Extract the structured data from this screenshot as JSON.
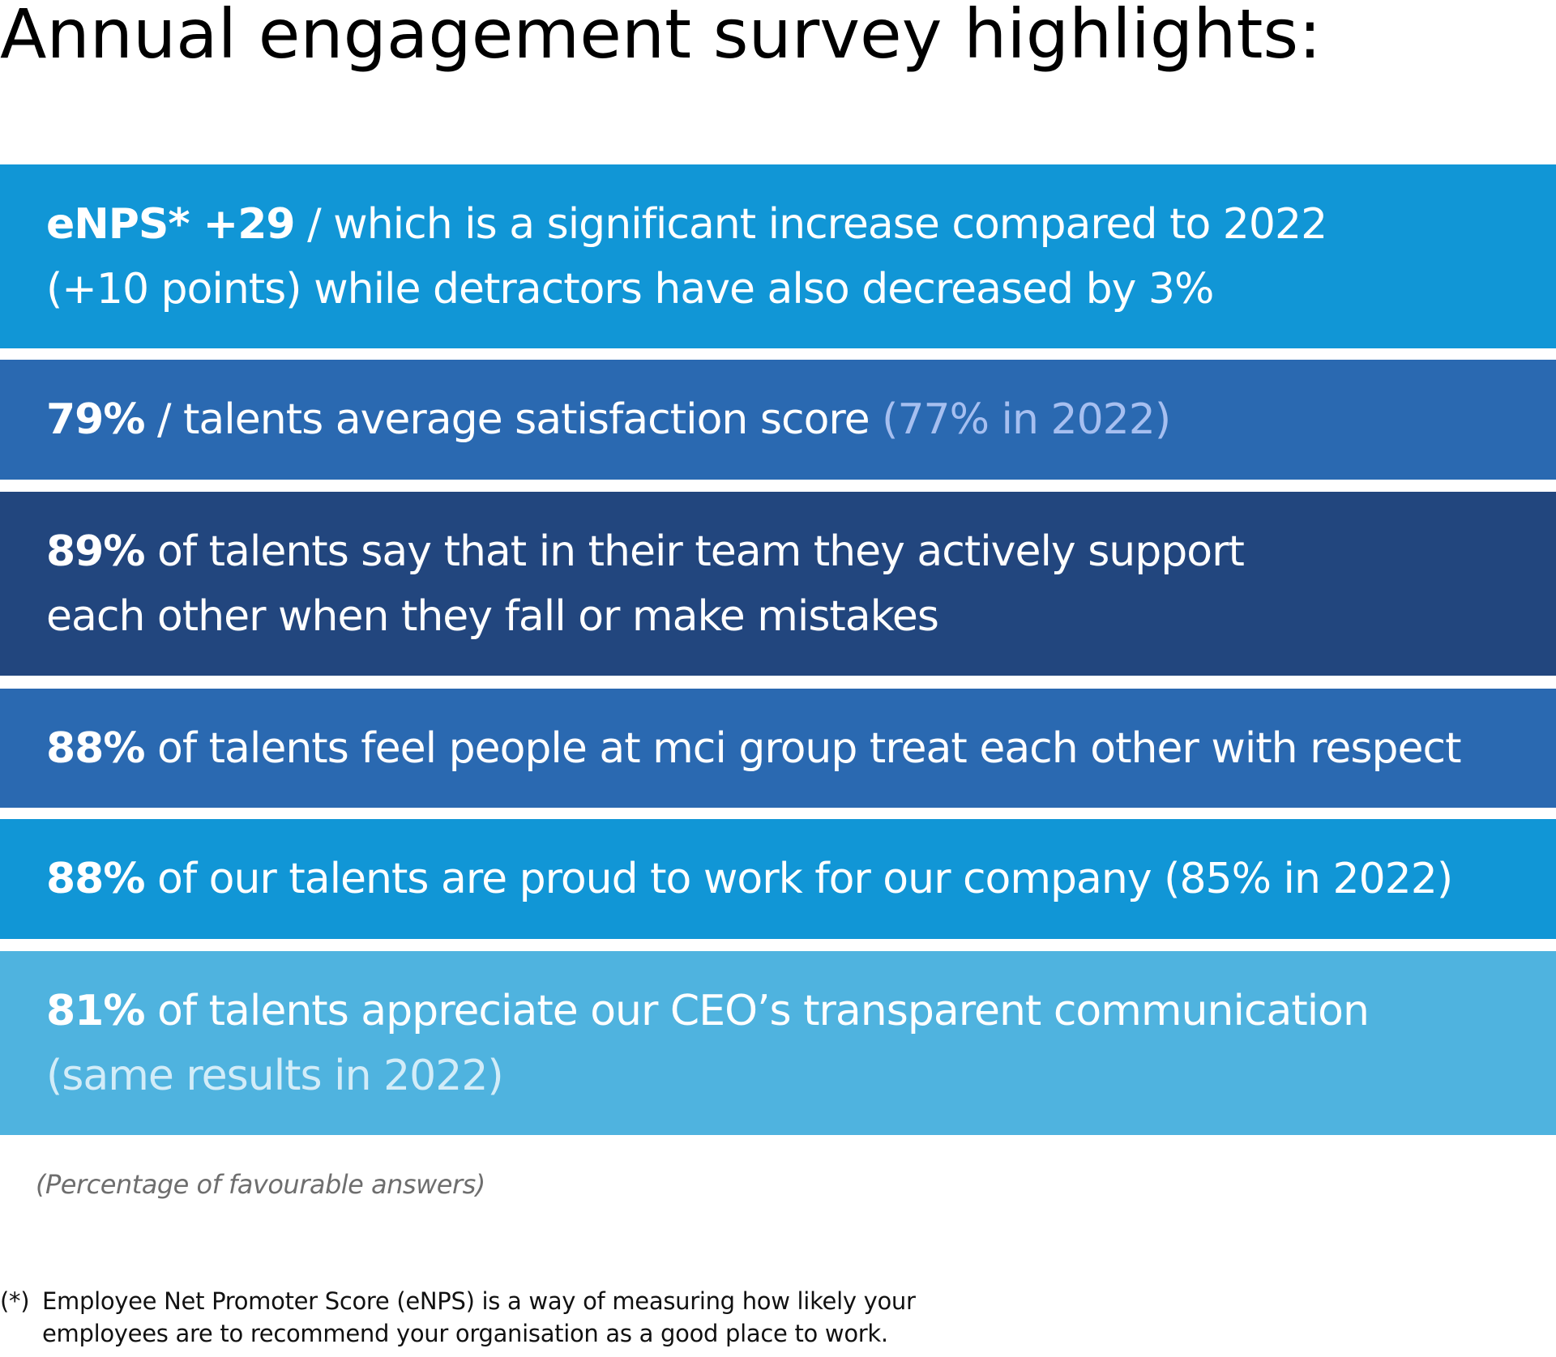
{
  "title": "Annual engagement survey highlights:",
  "highlights": [
    {
      "lines": [
        {
          "bold": "eNPS* +29",
          "text": " / which is a significant increase compared to 2022"
        },
        {
          "text": "(+10 points) while detractors have also decreased by 3%"
        }
      ],
      "color": "#1196d6"
    },
    {
      "lines": [
        {
          "bold": "79%",
          "text": " / talents average satisfaction score ",
          "muted": "(77% in 2022)"
        }
      ],
      "color": "#2a69b1"
    },
    {
      "lines": [
        {
          "bold": "89%",
          "text": " of talents say that in their team they actively support"
        },
        {
          "text": "each other when they fall or make mistakes"
        }
      ],
      "color": "#22467e"
    },
    {
      "lines": [
        {
          "bold": "88%",
          "text": " of talents feel people at mci group treat each other with respect"
        }
      ],
      "color": "#2a69b1"
    },
    {
      "lines": [
        {
          "bold": "88%",
          "text": " of our talents are proud to work for our company (85% in 2022)"
        }
      ],
      "color": "#1196d6"
    },
    {
      "lines": [
        {
          "bold": "81%",
          "text": " of talents appreciate our CEO’s transparent communication"
        },
        {
          "muted": "(same results in 2022)"
        }
      ],
      "color": "#4fb3df"
    }
  ],
  "note": "(Percentage of favourable answers)",
  "footnote": {
    "mark": "(*)",
    "line1": "Employee Net Promoter Score (eNPS) is a way of measuring how likely your",
    "line2": "employees are to recommend your organisation as a good place to work."
  }
}
